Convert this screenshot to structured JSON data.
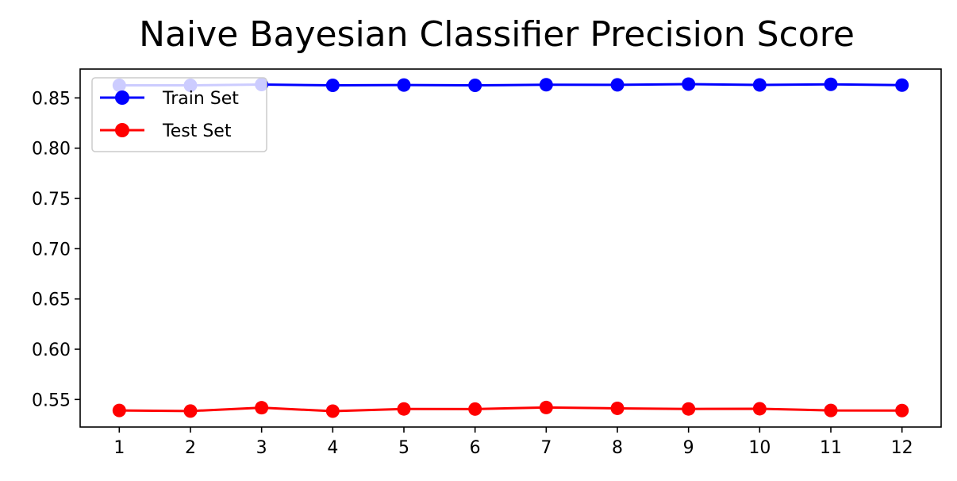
{
  "chart_data": {
    "type": "line",
    "title": "Naive Bayesian Classifier Precision Score",
    "xlabel": "",
    "ylabel": "",
    "x": [
      1,
      2,
      3,
      4,
      5,
      6,
      7,
      8,
      9,
      10,
      11,
      12
    ],
    "xticks": [
      "1",
      "2",
      "3",
      "4",
      "5",
      "6",
      "7",
      "8",
      "9",
      "10",
      "11",
      "12"
    ],
    "xlim": [
      0.45,
      12.55
    ],
    "yticks": [
      0.55,
      0.6,
      0.65,
      0.7,
      0.75,
      0.8,
      0.85
    ],
    "ytick_labels": [
      "0.55",
      "0.60",
      "0.65",
      "0.70",
      "0.75",
      "0.80",
      "0.85"
    ],
    "ylim": [
      0.5226,
      0.8787
    ],
    "grid": false,
    "legend_position": "upper-left",
    "series": [
      {
        "name": "Train Set",
        "color": "#0000ff",
        "marker": "circle",
        "values": [
          0.8625,
          0.8625,
          0.8633,
          0.8625,
          0.8628,
          0.8625,
          0.8631,
          0.863,
          0.8637,
          0.8629,
          0.8635,
          0.8627
        ]
      },
      {
        "name": "Test Set",
        "color": "#ff0000",
        "marker": "circle",
        "values": [
          0.5391,
          0.5385,
          0.5418,
          0.5384,
          0.5406,
          0.5405,
          0.542,
          0.5412,
          0.5406,
          0.5408,
          0.5391,
          0.539
        ]
      }
    ]
  }
}
